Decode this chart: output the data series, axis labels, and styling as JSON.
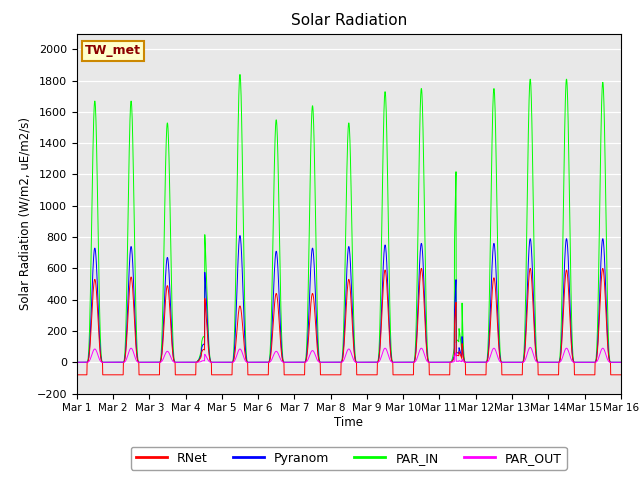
{
  "title": "Solar Radiation",
  "ylabel": "Solar Radiation (W/m2, uE/m2/s)",
  "xlabel": "Time",
  "ylim": [
    -200,
    2100
  ],
  "yticks": [
    -200,
    0,
    200,
    400,
    600,
    800,
    1000,
    1200,
    1400,
    1600,
    1800,
    2000
  ],
  "bg_color": "#e8e8e8",
  "line_colors": {
    "RNet": "#ff0000",
    "Pyranom": "#0000ff",
    "PAR_IN": "#00ff00",
    "PAR_OUT": "#ff00ff"
  },
  "station_label": "TW_met",
  "station_label_color": "#8b0000",
  "station_label_bg": "#ffffcc",
  "days": 15,
  "points_per_day": 144,
  "par_in_peaks": [
    1670,
    1670,
    1530,
    880,
    1840,
    1550,
    1640,
    1530,
    1730,
    1750,
    1430,
    1750,
    1810,
    1810,
    1790
  ],
  "pyranom_peaks": [
    730,
    740,
    670,
    620,
    810,
    710,
    730,
    740,
    750,
    760,
    620,
    760,
    790,
    790,
    790
  ],
  "rnet_peaks": [
    530,
    545,
    490,
    440,
    360,
    440,
    440,
    530,
    590,
    600,
    450,
    540,
    600,
    590,
    600
  ],
  "par_out_peaks": [
    85,
    90,
    70,
    55,
    85,
    70,
    75,
    85,
    90,
    90,
    70,
    90,
    95,
    90,
    90
  ],
  "rnet_night": -80,
  "cloudy_days": [
    3,
    10
  ],
  "sunrise": 0.28,
  "sunset": 0.72
}
